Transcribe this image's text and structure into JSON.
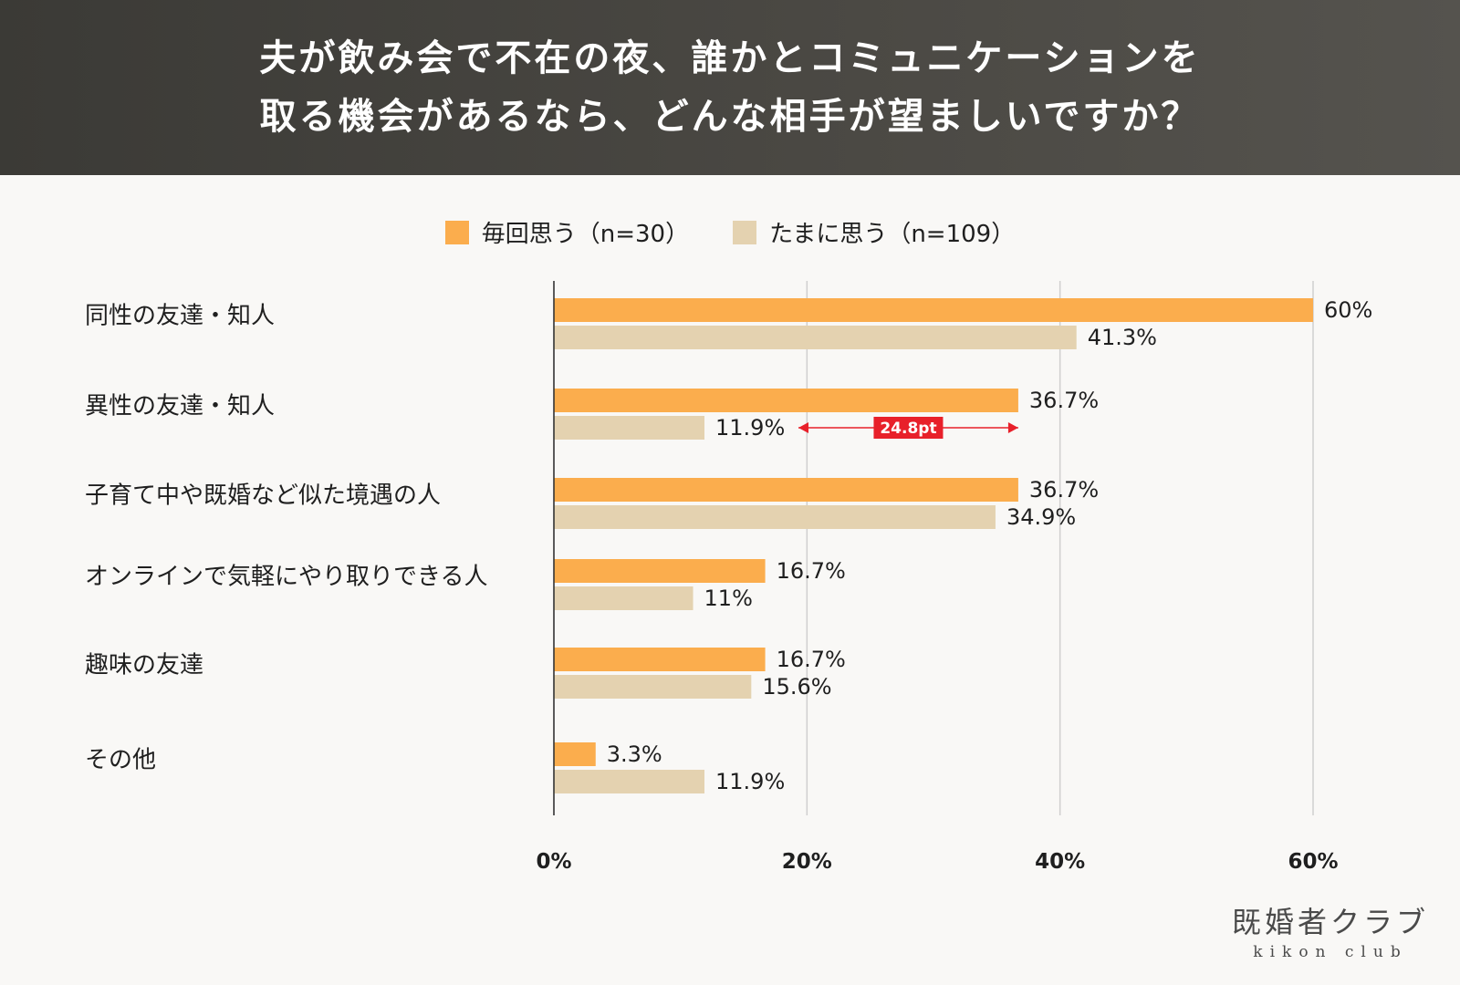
{
  "header": {
    "title_line1": "夫が飲み会で不在の夜、誰かとコミュニケーションを",
    "title_line2": "取る機会があるなら、どんな相手が望ましいですか？"
  },
  "legend": [
    {
      "label": "毎回思う（n=30）",
      "color": "#fbad4d"
    },
    {
      "label": "たまに思う（n=109）",
      "color": "#e4d2b0"
    }
  ],
  "chart_data": {
    "type": "bar",
    "orientation": "horizontal",
    "categories": [
      "同性の友達・知人",
      "異性の友達・知人",
      "子育て中や既婚など似た境遇の人",
      "オンラインで気軽にやり取りできる人",
      "趣味の友達",
      "その他"
    ],
    "series": [
      {
        "name": "毎回思う（n=30）",
        "color": "#fbad4d",
        "values": [
          60,
          36.7,
          36.7,
          16.7,
          16.7,
          3.3
        ],
        "labels": [
          "60%",
          "36.7%",
          "36.7%",
          "16.7%",
          "16.7%",
          "3.3%"
        ]
      },
      {
        "name": "たまに思う（n=109）",
        "color": "#e4d2b0",
        "values": [
          41.3,
          11.9,
          34.9,
          11,
          15.6,
          11.9
        ],
        "labels": [
          "41.3%",
          "11.9%",
          "34.9%",
          "11%",
          "15.6%",
          "11.9%"
        ]
      }
    ],
    "xlim": [
      0,
      60
    ],
    "ticks": [
      0,
      20,
      40,
      60
    ],
    "tick_labels": [
      "0%",
      "20%",
      "40%",
      "60%"
    ],
    "annotation": {
      "category_index": 1,
      "text": "24.8pt",
      "color": "#e8202a"
    }
  },
  "logo": {
    "ja": "既婚者クラブ",
    "en": "kikon club"
  }
}
